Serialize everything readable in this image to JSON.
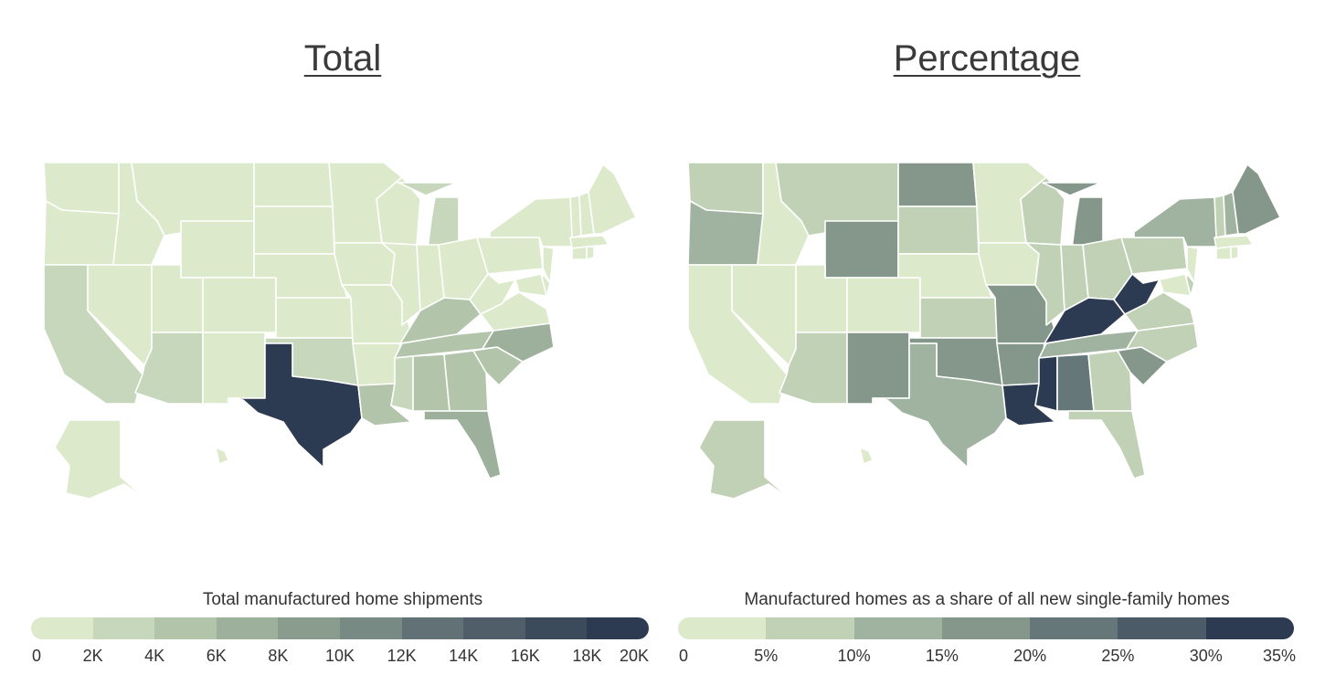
{
  "panels": [
    {
      "title": "Total",
      "legend_title": "Total manufactured home shipments",
      "legend_ticks": [
        "0",
        "2K",
        "4K",
        "6K",
        "8K",
        "10K",
        "12K",
        "14K",
        "16K",
        "18K",
        "20K"
      ],
      "legend_colors": [
        "#dde9cb",
        "#c7d7bb",
        "#b2c4a9",
        "#9db09b",
        "#899c8e",
        "#788a84",
        "#627176",
        "#4f5e69",
        "#3c4b5c",
        "#2c3b51"
      ]
    },
    {
      "title": "Percentage",
      "legend_title": "Manufactured homes as a share of all new single-family homes",
      "legend_ticks": [
        "0",
        "5%",
        "10%",
        "15%",
        "20%",
        "25%",
        "30%",
        "35%"
      ],
      "legend_colors": [
        "#dde9cb",
        "#c1d1b5",
        "#a0b3a0",
        "#84978a",
        "#66777a",
        "#4b5b68",
        "#2c3b51"
      ]
    }
  ]
}
